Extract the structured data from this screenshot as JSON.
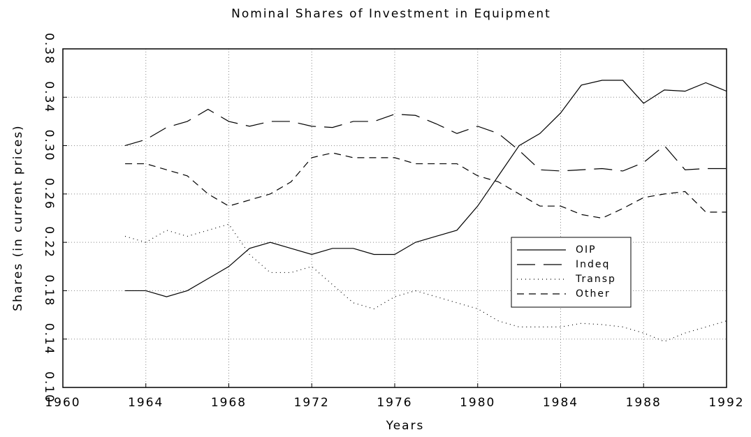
{
  "chart_data": {
    "type": "line",
    "title": "Nominal Shares of Investment in Equipment",
    "xlabel": "Years",
    "ylabel": "Shares (in current prices)",
    "x": [
      1963,
      1964,
      1965,
      1966,
      1967,
      1968,
      1969,
      1970,
      1971,
      1972,
      1973,
      1974,
      1975,
      1976,
      1977,
      1978,
      1979,
      1980,
      1981,
      1982,
      1983,
      1984,
      1985,
      1986,
      1987,
      1988,
      1989,
      1990,
      1991,
      1992
    ],
    "series": [
      {
        "name": "OIP",
        "color": "#000000",
        "style": "solid",
        "values": [
          0.18,
          0.18,
          0.175,
          0.18,
          0.19,
          0.2,
          0.215,
          0.22,
          0.215,
          0.21,
          0.215,
          0.215,
          0.21,
          0.21,
          0.22,
          0.225,
          0.23,
          0.25,
          0.275,
          0.3,
          0.31,
          0.327,
          0.35,
          0.354,
          0.354,
          0.335,
          0.346,
          0.345,
          0.352,
          0.345
        ]
      },
      {
        "name": "Indeq",
        "color": "#000000",
        "style": "longdash",
        "values": [
          0.3,
          0.305,
          0.315,
          0.32,
          0.33,
          0.32,
          0.316,
          0.32,
          0.32,
          0.316,
          0.315,
          0.32,
          0.32,
          0.326,
          0.325,
          0.318,
          0.31,
          0.316,
          0.31,
          0.296,
          0.28,
          0.279,
          0.28,
          0.281,
          0.279,
          0.286,
          0.3,
          0.28,
          0.281,
          0.281
        ]
      },
      {
        "name": "Transp",
        "color": "#000000",
        "style": "dotted",
        "values": [
          0.225,
          0.22,
          0.23,
          0.225,
          0.23,
          0.235,
          0.21,
          0.195,
          0.195,
          0.2,
          0.185,
          0.17,
          0.165,
          0.175,
          0.18,
          0.175,
          0.17,
          0.165,
          0.155,
          0.15,
          0.15,
          0.15,
          0.153,
          0.152,
          0.15,
          0.145,
          0.138,
          0.145,
          0.15,
          0.155
        ]
      },
      {
        "name": "Other",
        "color": "#000000",
        "style": "dashed",
        "values": [
          0.285,
          0.285,
          0.28,
          0.275,
          0.26,
          0.25,
          0.255,
          0.26,
          0.27,
          0.29,
          0.294,
          0.29,
          0.29,
          0.29,
          0.285,
          0.285,
          0.285,
          0.275,
          0.27,
          0.26,
          0.25,
          0.25,
          0.243,
          0.24,
          0.248,
          0.257,
          0.26,
          0.262,
          0.245,
          0.245
        ]
      }
    ],
    "xlim": [
      1960,
      1992
    ],
    "xticks": [
      1960,
      1964,
      1968,
      1972,
      1976,
      1980,
      1984,
      1988,
      1992
    ],
    "ylim": [
      0.1,
      0.38
    ],
    "yticks": [
      {
        "value": 0.1,
        "label": "0.10"
      },
      0.14,
      0.18,
      0.22,
      0.26,
      {
        "value": 0.3,
        "label": "0.30"
      },
      0.34,
      0.38
    ],
    "grid": true,
    "legend": "center-right"
  }
}
